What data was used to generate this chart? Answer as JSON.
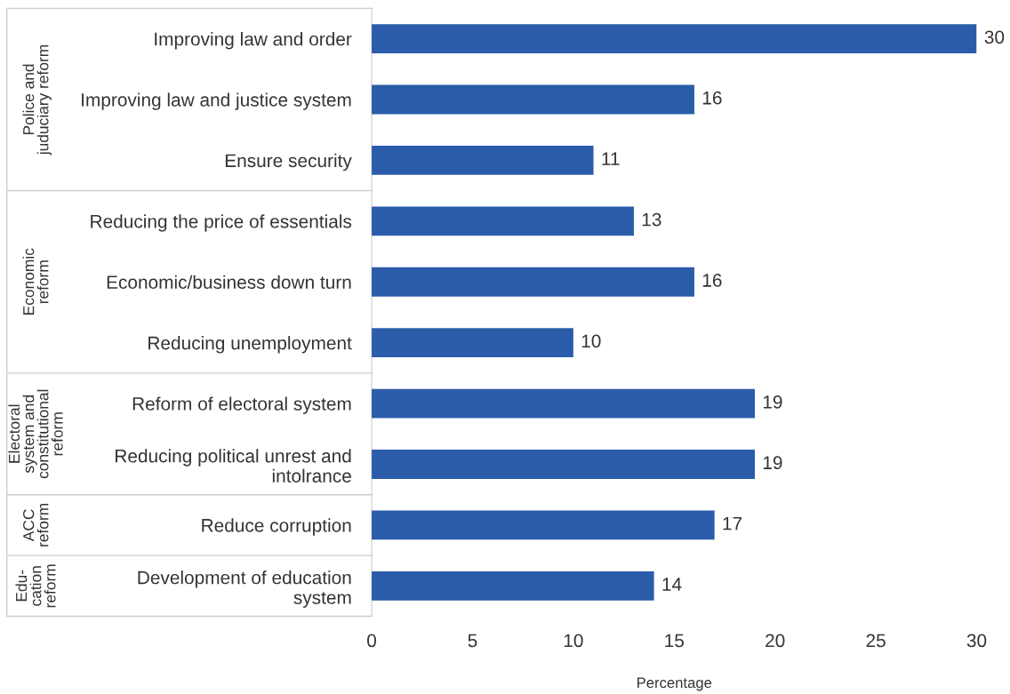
{
  "chart_data": {
    "type": "bar",
    "orientation": "horizontal",
    "categories": [
      "Improving law and order",
      "Improving law and justice system",
      "Ensure security",
      "Reducing the price of essentials",
      "Economic/business down turn",
      "Reducing unemployment",
      "Reform of electoral system",
      "Reducing political unrest and\nintolrance",
      "Reduce corruption",
      "Development of education\nsystem"
    ],
    "values": [
      30,
      16,
      11,
      13,
      16,
      10,
      19,
      19,
      17,
      14
    ],
    "color": "#2a5caa",
    "xlim": [
      0,
      30
    ],
    "xticks": [
      0,
      5,
      10,
      15,
      20,
      25,
      30
    ],
    "xlabel": "Percentage",
    "data_labels": true,
    "grid": false,
    "legend": false,
    "annotations": [
      "Police and\njuduciary reform",
      "Economic\nreform",
      "Electoral\nsystem and\nconstitutional\nreform",
      "ACC\nreform",
      "Edu-\ncation\nreform"
    ]
  }
}
